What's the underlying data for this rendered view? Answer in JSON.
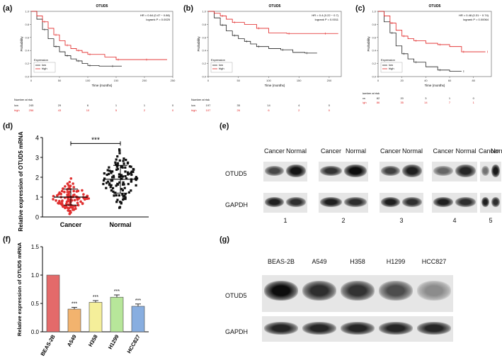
{
  "letters": [
    "(a)",
    "(b)",
    "(c)",
    "(d)",
    "(e)",
    "(f)",
    "(g)"
  ],
  "km_plots": [
    {
      "title": "OTUD5",
      "hr": "HR = 0.64 (0.47 − 0.86)",
      "logrank": "logrank P = 0.0025",
      "ylabel": "Probability",
      "xlabel": "Time (months)",
      "legend_title": "Expression",
      "legend": [
        "low",
        "high"
      ],
      "risk_title": "Number at risk",
      "xticks": [
        "0",
        "50",
        "100",
        "150",
        "200",
        "250"
      ],
      "yticks": [
        "0.0",
        "0.2",
        "0.4",
        "0.6",
        "0.8",
        "1.0"
      ],
      "risk_low": [
        "low",
        "245",
        "29",
        "6",
        "1",
        "1",
        "0"
      ],
      "risk_high": [
        "high",
        "256",
        "43",
        "10",
        "5",
        "2",
        "0"
      ]
    },
    {
      "title": "OTUD5",
      "hr": "HR = 0.4 (0.22 − 0.7)",
      "logrank": "logrank P = 0.0011",
      "ylabel": "Probability",
      "xlabel": "Time (months)",
      "legend_title": "Expression",
      "legend": [
        "low",
        "high"
      ],
      "risk_title": "Number at risk",
      "xticks": [
        "0",
        "50",
        "100",
        "150",
        "200"
      ],
      "yticks": [
        "0.0",
        "0.2",
        "0.4",
        "0.6",
        "0.8",
        "1.0"
      ],
      "risk_low": [
        "low",
        "197",
        "35",
        "14",
        "4",
        "0"
      ],
      "risk_high": [
        "high",
        "107",
        "26",
        "6",
        "2",
        "0"
      ]
    },
    {
      "title": "OTUD5",
      "hr": "HR = 0.48 (0.31 − 0.74)",
      "logrank": "logrank P = 0.00064",
      "ylabel": "Probability",
      "xlabel": "Time (months)",
      "legend_title": "Expression",
      "legend": [
        "low",
        "high"
      ],
      "risk_title": "Number at risk",
      "xticks": [
        "0",
        "20",
        "40",
        "60",
        "80"
      ],
      "yticks": [
        "0.0",
        "0.2",
        "0.4",
        "0.6",
        "0.8",
        "1.0"
      ],
      "risk_low": [
        "low",
        "82",
        "20",
        "3",
        "1",
        "0"
      ],
      "risk_high": [
        "high",
        "86",
        "35",
        "14",
        "7",
        "1"
      ]
    }
  ],
  "scatter": {
    "ylabel": "Relative expression of OTUD5 mRNA",
    "categories": [
      "Cancer",
      "Normal"
    ],
    "yticks": [
      "0",
      "1",
      "2",
      "3",
      "4"
    ],
    "significance": "***"
  },
  "blot_e": {
    "col_labels": [
      "Cancer",
      "Normal"
    ],
    "row_labels": [
      "OTUD5",
      "GAPDH"
    ],
    "sample_numbers": [
      "1",
      "2",
      "3",
      "4",
      "5"
    ]
  },
  "bar": {
    "ylabel": "Relative expression of OTUD5 mRNA",
    "yticks": [
      "0.0",
      "0.5",
      "1.0",
      "1.5"
    ],
    "sig": [
      "***",
      "***",
      "***",
      "***"
    ]
  },
  "blot_g": {
    "col_labels": [
      "BEAS-2B",
      "A549",
      "H358",
      "H1299",
      "HCC827"
    ],
    "row_labels": [
      "OTUD5",
      "GAPDH"
    ]
  },
  "chart_data": [
    {
      "type": "line",
      "title": "OTUD5",
      "xlabel": "Time (months)",
      "ylabel": "Probability",
      "xlim": [
        0,
        250
      ],
      "ylim": [
        0,
        1
      ],
      "series": [
        {
          "name": "low",
          "color": "#222222",
          "x": [
            0,
            10,
            20,
            30,
            40,
            50,
            60,
            70,
            80,
            90,
            100,
            120,
            140,
            160
          ],
          "y": [
            1.0,
            0.88,
            0.72,
            0.58,
            0.46,
            0.38,
            0.32,
            0.27,
            0.24,
            0.2,
            0.17,
            0.16,
            0.16,
            0.16
          ]
        },
        {
          "name": "high",
          "color": "#e02020",
          "x": [
            0,
            10,
            20,
            30,
            40,
            50,
            60,
            70,
            80,
            90,
            100,
            130,
            150,
            170,
            200,
            240
          ],
          "y": [
            1.0,
            0.93,
            0.84,
            0.74,
            0.64,
            0.55,
            0.48,
            0.43,
            0.4,
            0.37,
            0.34,
            0.3,
            0.26,
            0.26,
            0.26,
            0.26
          ]
        }
      ]
    },
    {
      "type": "line",
      "title": "OTUD5",
      "xlabel": "Time (months)",
      "ylabel": "Probability",
      "xlim": [
        0,
        220
      ],
      "ylim": [
        0,
        1
      ],
      "series": [
        {
          "name": "low",
          "color": "#222222",
          "x": [
            0,
            10,
            20,
            30,
            40,
            50,
            60,
            70,
            80,
            100,
            120,
            140,
            160,
            180
          ],
          "y": [
            1.0,
            0.9,
            0.79,
            0.7,
            0.63,
            0.58,
            0.54,
            0.5,
            0.46,
            0.43,
            0.41,
            0.37,
            0.36,
            0.36
          ]
        },
        {
          "name": "high",
          "color": "#e02020",
          "x": [
            0,
            10,
            20,
            30,
            40,
            60,
            80,
            100,
            130,
            160,
            190,
            215
          ],
          "y": [
            1.0,
            0.97,
            0.93,
            0.88,
            0.83,
            0.8,
            0.74,
            0.67,
            0.66,
            0.66,
            0.66,
            0.66
          ]
        }
      ]
    },
    {
      "type": "line",
      "title": "OTUD5",
      "xlabel": "Time (months)",
      "ylabel": "Probability",
      "xlim": [
        0,
        95
      ],
      "ylim": [
        0,
        1
      ],
      "series": [
        {
          "name": "low",
          "color": "#222222",
          "x": [
            0,
            5,
            10,
            15,
            20,
            25,
            30,
            40,
            50,
            60,
            70
          ],
          "y": [
            1.0,
            0.84,
            0.67,
            0.47,
            0.35,
            0.27,
            0.22,
            0.15,
            0.1,
            0.08,
            0.08
          ]
        },
        {
          "name": "high",
          "color": "#e02020",
          "x": [
            0,
            5,
            10,
            15,
            20,
            25,
            30,
            40,
            50,
            60,
            70,
            80,
            90
          ],
          "y": [
            1.0,
            0.93,
            0.82,
            0.71,
            0.62,
            0.58,
            0.55,
            0.51,
            0.49,
            0.46,
            0.38,
            0.38,
            0.38
          ]
        }
      ]
    },
    {
      "type": "scatter",
      "categories": [
        "Cancer",
        "Normal"
      ],
      "ylabel": "Relative expression of OTUD5 mRNA",
      "ylim": [
        0,
        4
      ],
      "series": [
        {
          "name": "Cancer",
          "color": "#e03030",
          "mean": 1.0,
          "sd": 0.4,
          "n": 110
        },
        {
          "name": "Normal",
          "color": "#111111",
          "mean": 1.9,
          "sd": 0.7,
          "n": 110
        }
      ]
    },
    {
      "type": "bar",
      "categories": [
        "BEAS-2B",
        "A549",
        "H358",
        "H1299",
        "HCC827"
      ],
      "values": [
        1.0,
        0.4,
        0.52,
        0.61,
        0.45
      ],
      "errors": [
        0.0,
        0.03,
        0.03,
        0.04,
        0.04
      ],
      "colors": [
        "#e46a6a",
        "#f2b36e",
        "#f5ef9a",
        "#b7e69a",
        "#88aee0"
      ],
      "ylabel": "Relative expression of OTUD5 mRNA",
      "ylim": [
        0,
        1.5
      ]
    }
  ]
}
